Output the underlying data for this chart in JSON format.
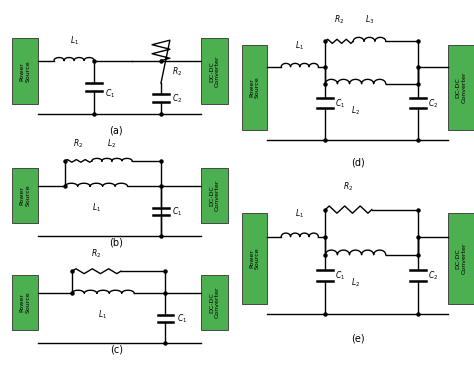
{
  "background_color": "#ffffff",
  "green_color": "#4CAF50",
  "line_color": "#000000",
  "line_width": 1.0,
  "panels": [
    "(a)",
    "(b)",
    "(c)",
    "(d)",
    "(e)"
  ]
}
